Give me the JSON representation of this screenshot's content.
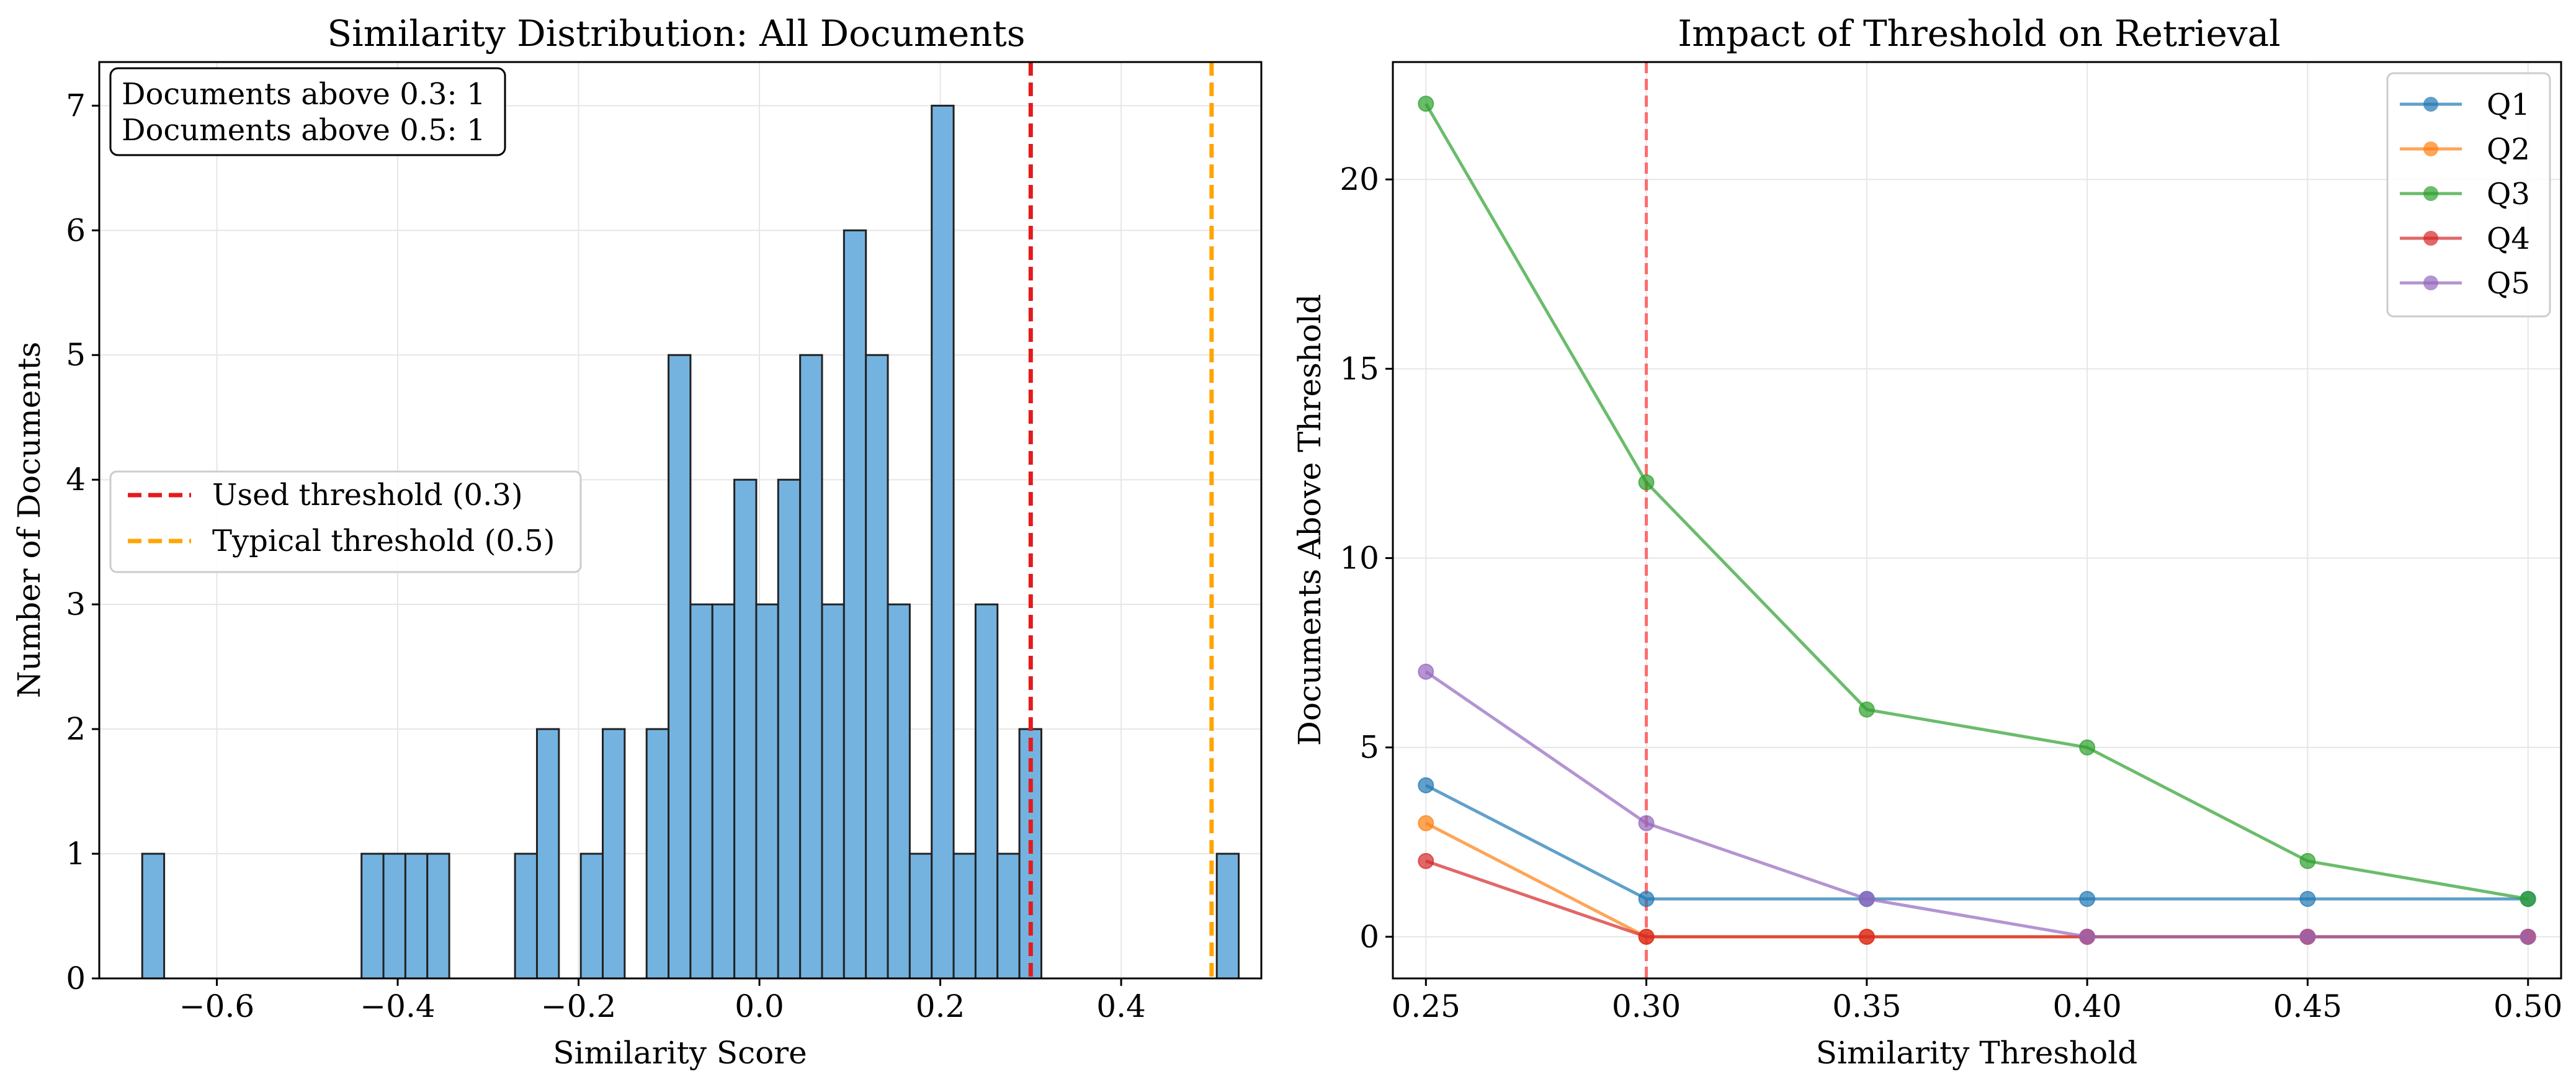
{
  "chart_data": [
    {
      "type": "bar",
      "title": "Similarity Distribution: All Documents",
      "xlabel": "Similarity Score",
      "ylabel": "Number of Documents",
      "xlim": [
        -0.73,
        0.555
      ],
      "ylim": [
        0,
        7.35
      ],
      "xticks": [
        -0.6,
        -0.4,
        -0.2,
        0.0,
        0.2,
        0.4
      ],
      "xtick_labels": [
        "−0.6",
        "−0.4",
        "−0.2",
        "0.0",
        "0.2",
        "0.4"
      ],
      "yticks": [
        0,
        1,
        2,
        3,
        4,
        5,
        6,
        7
      ],
      "ytick_labels": [
        "0",
        "1",
        "2",
        "3",
        "4",
        "5",
        "6",
        "7"
      ],
      "grid": true,
      "bar_color": "#74b3e0",
      "bar_edge_color": "#222222",
      "bin_start": -0.6825,
      "bin_width": 0.02425,
      "bin_counts": [
        1,
        0,
        0,
        0,
        0,
        0,
        0,
        0,
        0,
        0,
        1,
        1,
        1,
        1,
        0,
        0,
        0,
        1,
        2,
        0,
        1,
        2,
        0,
        2,
        5,
        3,
        3,
        4,
        3,
        4,
        5,
        3,
        6,
        5,
        3,
        1,
        7,
        1,
        3,
        1,
        2,
        0,
        0,
        0,
        0,
        0,
        0,
        0,
        0,
        1
      ],
      "vlines": [
        {
          "x": 0.3,
          "color": "#e41a1c",
          "label": "Used threshold (0.3)"
        },
        {
          "x": 0.5,
          "color": "#ffa500",
          "label": "Typical threshold (0.5)"
        }
      ],
      "legend_position": "center-left",
      "annotation": [
        "Documents above 0.3: 1",
        "Documents above 0.5: 1"
      ]
    },
    {
      "type": "line",
      "title": "Impact of Threshold on Retrieval",
      "xlabel": "Similarity Threshold",
      "ylabel": "Documents Above Threshold",
      "xlim": [
        0.2425,
        0.5075
      ],
      "ylim": [
        -1.1,
        23.1
      ],
      "xticks": [
        0.25,
        0.3,
        0.35,
        0.4,
        0.45,
        0.5
      ],
      "xtick_labels": [
        "0.25",
        "0.30",
        "0.35",
        "0.40",
        "0.45",
        "0.50"
      ],
      "yticks": [
        0,
        5,
        10,
        15,
        20
      ],
      "ytick_labels": [
        "0",
        "5",
        "10",
        "15",
        "20"
      ],
      "grid": true,
      "x": [
        0.25,
        0.3,
        0.35,
        0.4,
        0.45,
        0.5
      ],
      "series": [
        {
          "name": "Q1",
          "color": "#1f77b4",
          "values": [
            4,
            1,
            1,
            1,
            1,
            1
          ]
        },
        {
          "name": "Q2",
          "color": "#ff7f0e",
          "values": [
            3,
            0,
            0,
            0,
            0,
            0
          ]
        },
        {
          "name": "Q3",
          "color": "#2ca02c",
          "values": [
            22,
            12,
            6,
            5,
            2,
            1
          ]
        },
        {
          "name": "Q4",
          "color": "#d62728",
          "values": [
            2,
            0,
            0,
            0,
            0,
            0
          ]
        },
        {
          "name": "Q5",
          "color": "#9467bd",
          "values": [
            7,
            3,
            1,
            0,
            0,
            0
          ]
        }
      ],
      "vlines": [
        {
          "x": 0.3,
          "color": "#ff5555"
        }
      ],
      "legend_position": "top-right"
    }
  ]
}
